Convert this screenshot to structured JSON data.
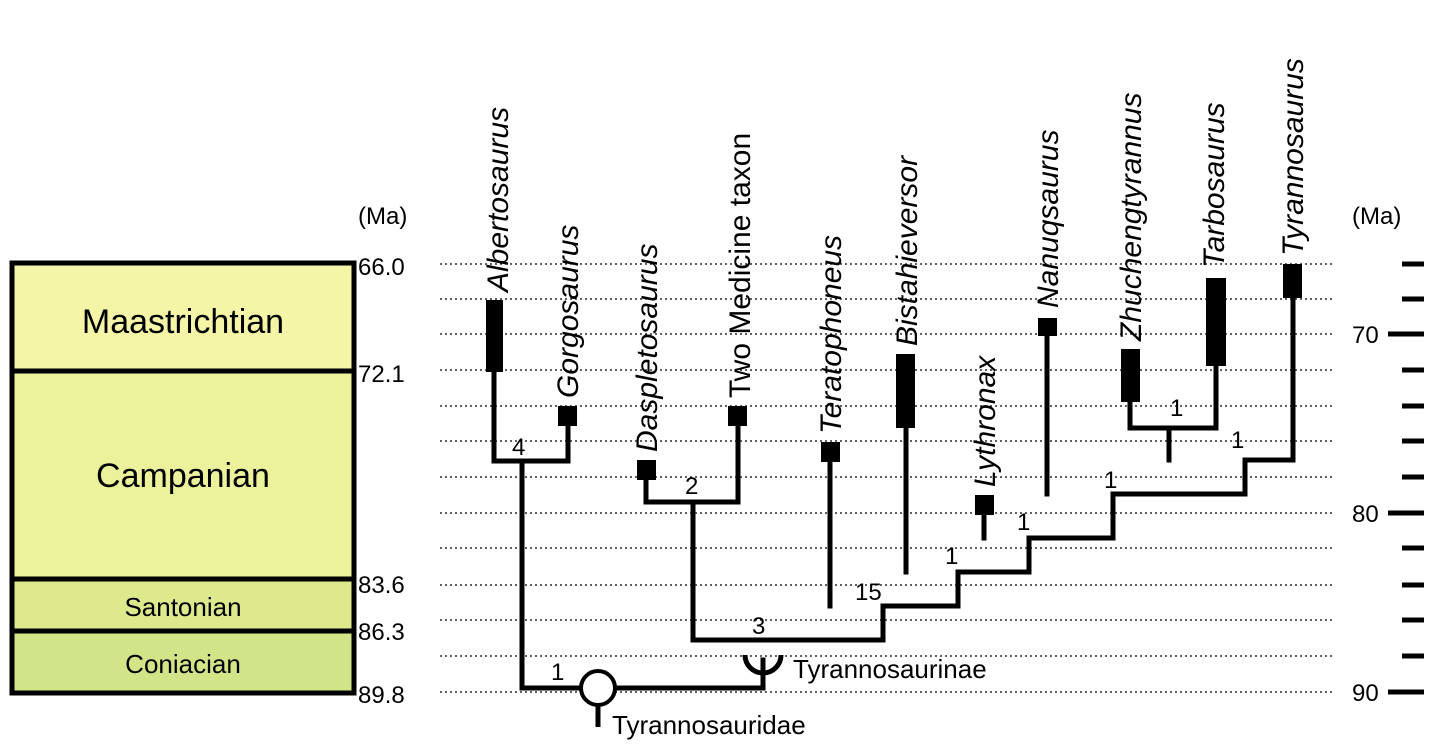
{
  "stages": [
    {
      "name": "Maastrichtian",
      "color": "#f5f5a8"
    },
    {
      "name": "Campanian",
      "color": "#ecf29c"
    },
    {
      "name": "Santonian",
      "color": "#dde98c"
    },
    {
      "name": "Coniacian",
      "color": "#d2e488"
    }
  ],
  "left_axis": {
    "unit": "(Ma)",
    "labels": [
      "66.0",
      "72.1",
      "83.6",
      "86.3",
      "89.8"
    ]
  },
  "right_axis": {
    "unit": "(Ma)",
    "labels": [
      "70",
      "80",
      "90"
    ]
  },
  "taxa": [
    {
      "name": "Albertosaurus",
      "italic": true,
      "color": "#000000"
    },
    {
      "name": "Gorgosaurus",
      "italic": true,
      "color": "#000000"
    },
    {
      "name": "Daspletosaurus",
      "italic": true,
      "color": "#000000"
    },
    {
      "name": "Two Medicine taxon",
      "italic": false,
      "color": "#000000"
    },
    {
      "name": "Teratophoneus",
      "italic": true,
      "color": "#000000"
    },
    {
      "name": "Bistahieversor",
      "italic": true,
      "color": "#000000"
    },
    {
      "name": "Lythronax",
      "italic": true,
      "color": "#000000"
    },
    {
      "name": "Nanuqsaurus",
      "italic": true,
      "color": "#e8262c"
    },
    {
      "name": "Zhuchengtyrannus",
      "italic": true,
      "color": "#000000"
    },
    {
      "name": "Tarbosaurus",
      "italic": true,
      "color": "#000000"
    },
    {
      "name": "Tyrannosaurus",
      "italic": true,
      "color": "#000000"
    }
  ],
  "node_values": [
    "4",
    "2",
    "1",
    "3",
    "15",
    "1",
    "1",
    "1",
    "1",
    "1"
  ],
  "clades": {
    "tyrannosauridae": "Tyrannosauridae",
    "tyrannosaurinae": "Tyrannosaurinae"
  }
}
